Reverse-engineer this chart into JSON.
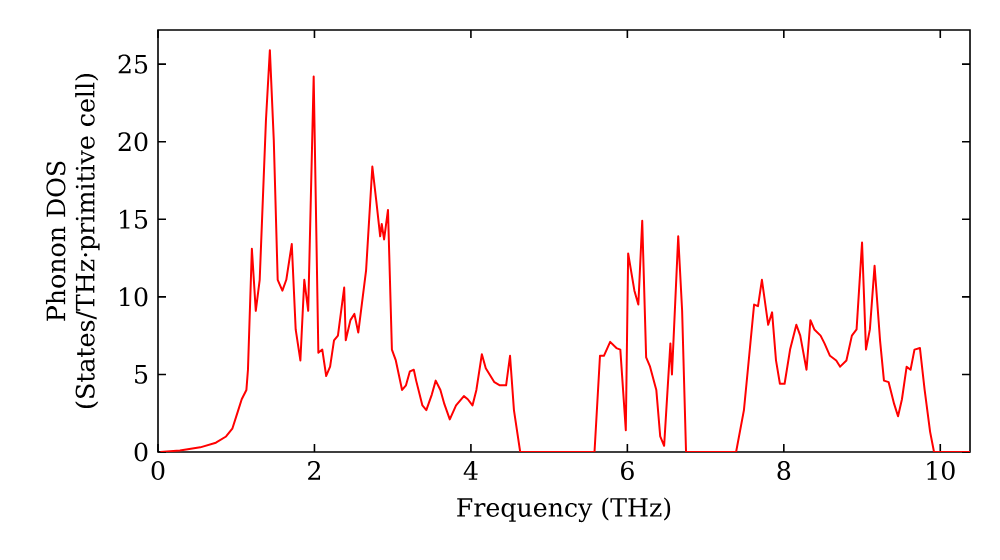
{
  "chart_data": {
    "type": "line",
    "xlabel": "Frequency (THz)",
    "ylabel": "Phonon DOS\n(States/THz·primitive cell)",
    "xlim": [
      0,
      10.38
    ],
    "ylim": [
      0,
      27.2
    ],
    "xticks": [
      0,
      2,
      4,
      6,
      8,
      10
    ],
    "yticks": [
      0,
      5,
      10,
      15,
      20,
      25
    ],
    "marker": "none",
    "line_style": "solid",
    "series": [
      {
        "color": "#ff0000",
        "x": [
          0.03,
          0.28,
          0.54,
          0.74,
          0.87,
          0.95,
          1.02,
          1.07,
          1.13,
          1.15,
          1.2,
          1.25,
          1.3,
          1.38,
          1.43,
          1.48,
          1.53,
          1.59,
          1.64,
          1.71,
          1.76,
          1.82,
          1.87,
          1.92,
          1.99,
          2.05,
          2.1,
          2.15,
          2.2,
          2.25,
          2.3,
          2.38,
          2.4,
          2.46,
          2.51,
          2.56,
          2.66,
          2.74,
          2.79,
          2.84,
          2.86,
          2.89,
          2.94,
          2.99,
          3.04,
          3.12,
          3.17,
          3.22,
          3.27,
          3.3,
          3.38,
          3.43,
          3.5,
          3.55,
          3.61,
          3.66,
          3.73,
          3.81,
          3.91,
          3.96,
          4.02,
          4.07,
          4.14,
          4.19,
          4.3,
          4.37,
          4.45,
          4.5,
          4.55,
          4.63,
          5.58,
          5.65,
          5.7,
          5.78,
          5.86,
          5.91,
          5.98,
          6.01,
          6.09,
          6.14,
          6.19,
          6.24,
          6.29,
          6.37,
          6.42,
          6.47,
          6.55,
          6.57,
          6.65,
          6.7,
          6.75,
          7.39,
          7.49,
          7.54,
          7.62,
          7.67,
          7.72,
          7.8,
          7.85,
          7.9,
          7.95,
          8.01,
          8.08,
          8.16,
          8.21,
          8.29,
          8.34,
          8.39,
          8.47,
          8.52,
          8.59,
          8.67,
          8.72,
          8.8,
          8.87,
          8.93,
          9.0,
          9.05,
          9.1,
          9.16,
          9.23,
          9.28,
          9.34,
          9.41,
          9.46,
          9.51,
          9.57,
          9.62,
          9.67,
          9.74,
          9.8,
          9.87,
          9.92,
          10.38
        ],
        "values": [
          0,
          0.1,
          0.3,
          0.6,
          1.0,
          1.5,
          2.6,
          3.4,
          4.0,
          5.3,
          13.1,
          9.1,
          11.1,
          21.4,
          25.9,
          20.1,
          11.1,
          10.4,
          11.1,
          13.4,
          7.9,
          5.9,
          11.1,
          9.1,
          24.2,
          6.4,
          6.6,
          4.9,
          5.5,
          7.2,
          7.5,
          10.6,
          7.2,
          8.5,
          8.9,
          7.7,
          11.7,
          18.4,
          16.2,
          13.9,
          14.7,
          13.7,
          15.6,
          6.6,
          5.9,
          4.0,
          4.3,
          5.2,
          5.3,
          4.6,
          3.0,
          2.7,
          3.7,
          4.6,
          4.0,
          3.1,
          2.1,
          3.0,
          3.6,
          3.4,
          3.0,
          4.0,
          6.3,
          5.4,
          4.5,
          4.3,
          4.3,
          6.2,
          2.7,
          0,
          0,
          6.2,
          6.2,
          7.1,
          6.7,
          6.6,
          1.4,
          12.8,
          10.4,
          9.5,
          14.9,
          6.1,
          5.5,
          4.0,
          1.0,
          0.4,
          7.0,
          5.0,
          13.9,
          9.1,
          0,
          0,
          2.7,
          5.3,
          9.5,
          9.4,
          11.1,
          8.2,
          9.0,
          5.9,
          4.4,
          4.4,
          6.6,
          8.2,
          7.5,
          5.3,
          8.5,
          7.9,
          7.5,
          7.0,
          6.2,
          5.9,
          5.5,
          5.9,
          7.5,
          7.9,
          13.5,
          6.6,
          7.9,
          12.0,
          7.2,
          4.6,
          4.5,
          3.1,
          2.3,
          3.4,
          5.5,
          5.3,
          6.6,
          6.7,
          4.0,
          1.3,
          0,
          0
        ]
      }
    ]
  }
}
